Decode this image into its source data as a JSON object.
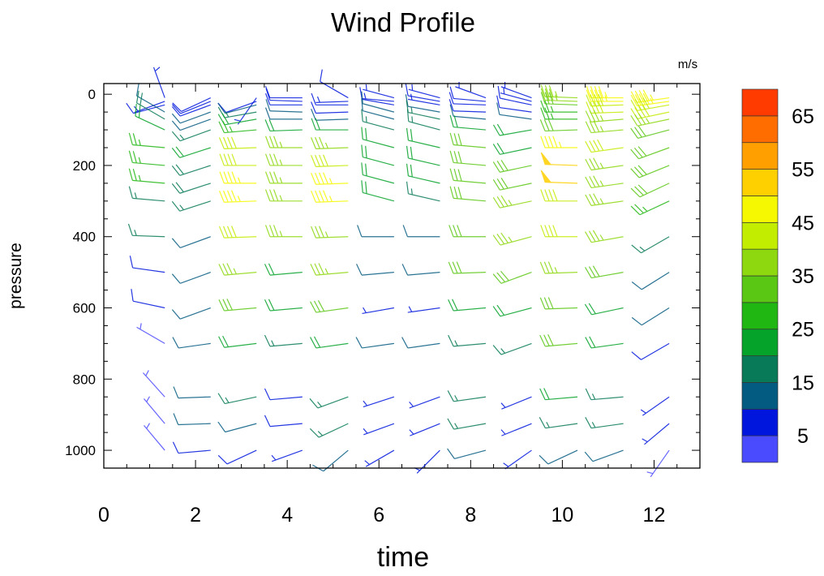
{
  "chart_data": {
    "type": "wind-barb",
    "title": "Wind Profile",
    "xlabel": "time",
    "ylabel": "pressure",
    "units_label": "m/s",
    "xlim": [
      0,
      13
    ],
    "ylim": [
      1050,
      -30
    ],
    "x_ticks": [
      0,
      2,
      4,
      6,
      8,
      10,
      12
    ],
    "y_ticks": [
      0,
      200,
      400,
      600,
      800,
      1000
    ],
    "colorbar": {
      "labels": [
        "5",
        "15",
        "25",
        "35",
        "45",
        "55",
        "65"
      ],
      "levels": [
        5,
        10,
        15,
        20,
        25,
        30,
        35,
        40,
        45,
        50,
        55,
        60,
        65
      ],
      "colors": [
        "#4a4aff",
        "#0016dd",
        "#045b81",
        "#087a57",
        "#06a32a",
        "#21b712",
        "#5bc715",
        "#8ed80f",
        "#c2ec00",
        "#f5f800",
        "#ffd000",
        "#ff9f00",
        "#ff6d00",
        "#ff3b00"
      ],
      "placement": "right"
    },
    "pressure_levels": [
      10,
      20,
      30,
      50,
      70,
      100,
      150,
      200,
      250,
      300,
      400,
      500,
      600,
      700,
      850,
      925,
      1000
    ],
    "times": [
      1,
      2,
      3,
      4,
      5,
      6,
      7,
      8,
      9,
      10,
      11,
      12
    ],
    "speed": [
      [
        6,
        6,
        8,
        12,
        18,
        22,
        25,
        25,
        25,
        15,
        15,
        8,
        8,
        3,
        3,
        3,
        4
      ],
      [
        8,
        8,
        8,
        12,
        12,
        15,
        20,
        18,
        18,
        15,
        12,
        12,
        12,
        12,
        12,
        12,
        8
      ],
      [
        5,
        8,
        12,
        15,
        20,
        25,
        40,
        40,
        45,
        45,
        40,
        35,
        30,
        20,
        15,
        12,
        8
      ],
      [
        8,
        8,
        8,
        10,
        12,
        20,
        35,
        35,
        35,
        35,
        35,
        20,
        20,
        15,
        8,
        8,
        6
      ],
      [
        8,
        6,
        8,
        8,
        12,
        20,
        35,
        40,
        45,
        45,
        35,
        35,
        30,
        20,
        15,
        15,
        12
      ],
      [
        5,
        6,
        8,
        10,
        12,
        15,
        20,
        20,
        20,
        20,
        12,
        12,
        6,
        12,
        6,
        6,
        6
      ],
      [
        6,
        8,
        6,
        12,
        15,
        15,
        20,
        20,
        20,
        15,
        12,
        10,
        6,
        12,
        6,
        6,
        6
      ],
      [
        6,
        8,
        8,
        8,
        12,
        20,
        30,
        30,
        30,
        30,
        30,
        30,
        20,
        15,
        15,
        15,
        12
      ],
      [
        6,
        6,
        8,
        8,
        12,
        20,
        20,
        30,
        30,
        35,
        35,
        30,
        20,
        15,
        6,
        6,
        6
      ],
      [
        35,
        35,
        30,
        25,
        25,
        30,
        45,
        50,
        50,
        40,
        40,
        35,
        30,
        30,
        20,
        15,
        12
      ],
      [
        45,
        45,
        40,
        40,
        35,
        35,
        40,
        35,
        35,
        35,
        35,
        30,
        20,
        20,
        15,
        15,
        10
      ],
      [
        45,
        45,
        40,
        40,
        35,
        30,
        30,
        30,
        30,
        25,
        15,
        12,
        12,
        8,
        5,
        5,
        4
      ]
    ],
    "direction": [
      [
        340,
        250,
        255,
        300,
        300,
        295,
        275,
        275,
        275,
        275,
        272,
        278,
        282,
        300,
        318,
        320,
        320
      ],
      [
        245,
        248,
        250,
        250,
        250,
        250,
        252,
        252,
        252,
        252,
        250,
        250,
        250,
        262,
        268,
        268,
        265
      ],
      [
        215,
        250,
        255,
        260,
        260,
        265,
        268,
        270,
        270,
        268,
        268,
        265,
        265,
        263,
        258,
        255,
        245
      ],
      [
        270,
        272,
        270,
        272,
        270,
        268,
        270,
        270,
        270,
        270,
        270,
        265,
        265,
        265,
        265,
        265,
        250
      ],
      [
        300,
        268,
        270,
        268,
        268,
        270,
        268,
        268,
        268,
        268,
        268,
        265,
        262,
        262,
        250,
        245,
        230
      ],
      [
        285,
        275,
        280,
        285,
        285,
        285,
        285,
        285,
        285,
        285,
        270,
        265,
        260,
        262,
        252,
        250,
        240
      ],
      [
        285,
        280,
        280,
        280,
        282,
        285,
        283,
        283,
        283,
        283,
        270,
        265,
        262,
        262,
        250,
        248,
        225
      ],
      [
        290,
        275,
        272,
        272,
        275,
        275,
        275,
        275,
        275,
        275,
        270,
        268,
        265,
        265,
        262,
        260,
        255
      ],
      [
        290,
        285,
        282,
        278,
        278,
        260,
        258,
        258,
        258,
        258,
        255,
        250,
        255,
        250,
        248,
        248,
        235
      ],
      [
        272,
        272,
        272,
        270,
        270,
        268,
        270,
        272,
        272,
        270,
        270,
        268,
        268,
        265,
        265,
        262,
        245
      ],
      [
        270,
        270,
        268,
        268,
        265,
        265,
        262,
        262,
        262,
        262,
        260,
        260,
        258,
        262,
        265,
        262,
        250
      ],
      [
        262,
        262,
        260,
        258,
        258,
        255,
        250,
        248,
        245,
        245,
        240,
        238,
        238,
        240,
        235,
        230,
        215
      ]
    ]
  }
}
